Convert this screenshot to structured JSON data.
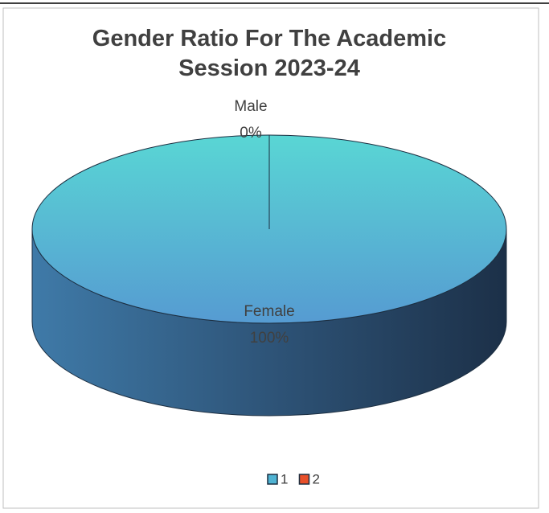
{
  "chart_data": {
    "type": "pie",
    "title": "Gender Ratio For The Academic Session 2023-24",
    "categories": [
      "Male",
      "Female"
    ],
    "values": [
      0,
      100
    ],
    "value_labels": [
      "0%",
      "100%"
    ],
    "colors": [
      "#e8502a",
      "#4fb3d3"
    ],
    "legend": {
      "position": "bottom",
      "entries": [
        {
          "name": "1",
          "color": "#4fb3d3"
        },
        {
          "name": "2",
          "color": "#e8502a"
        }
      ]
    }
  }
}
